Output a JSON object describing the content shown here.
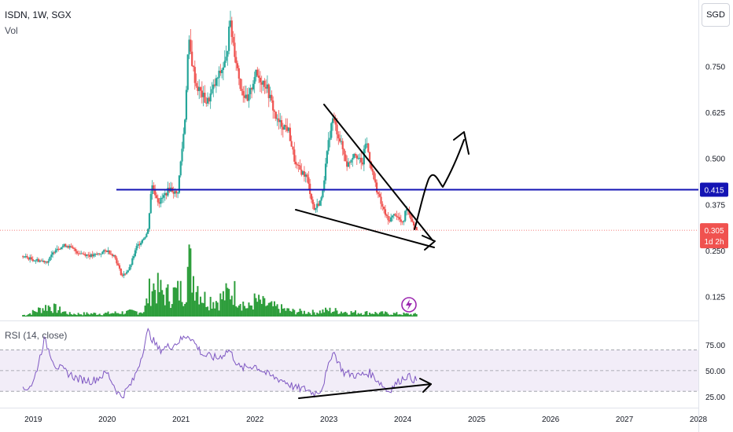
{
  "header": {
    "symbol_line": "ISDN, 1W, SGX",
    "volume_label": "Vol",
    "currency_button": "SGD"
  },
  "rsi": {
    "label": "RSI (14, close)",
    "ticks": [
      "75.00",
      "50.00",
      "25.00"
    ]
  },
  "price_axis": {
    "ticks": [
      "0.750",
      "0.625",
      "0.500",
      "0.375",
      "0.250",
      "0.125"
    ]
  },
  "markers": {
    "level_price": "0.415",
    "last_price": "0.305",
    "countdown": "1d 2h"
  },
  "colors": {
    "up": "#26a69a",
    "down": "#ef5350",
    "volume": "#2e9e3c",
    "level_line": "#1414b4",
    "last_price": "#f0524f",
    "rsi_line": "#7e57c2",
    "rsi_band": "#ede7f6"
  },
  "chart_data": {
    "type": "candlestick",
    "x_ticks": [
      "2019",
      "2020",
      "2021",
      "2022",
      "2023",
      "2024",
      "2025",
      "2026",
      "2027",
      "2028"
    ],
    "ylim": [
      0.06,
      0.93
    ],
    "price_path": [
      [
        2018.85,
        0.235
      ],
      [
        2019.0,
        0.225
      ],
      [
        2019.2,
        0.22
      ],
      [
        2019.3,
        0.255
      ],
      [
        2019.45,
        0.265
      ],
      [
        2019.6,
        0.245
      ],
      [
        2019.8,
        0.235
      ],
      [
        2020.0,
        0.25
      ],
      [
        2020.1,
        0.235
      ],
      [
        2020.2,
        0.18
      ],
      [
        2020.3,
        0.2
      ],
      [
        2020.4,
        0.26
      ],
      [
        2020.55,
        0.3
      ],
      [
        2020.6,
        0.43
      ],
      [
        2020.7,
        0.38
      ],
      [
        2020.85,
        0.42
      ],
      [
        2020.95,
        0.4
      ],
      [
        2021.05,
        0.6
      ],
      [
        2021.1,
        0.82
      ],
      [
        2021.2,
        0.7
      ],
      [
        2021.35,
        0.65
      ],
      [
        2021.5,
        0.72
      ],
      [
        2021.62,
        0.77
      ],
      [
        2021.65,
        0.88
      ],
      [
        2021.8,
        0.7
      ],
      [
        2021.9,
        0.65
      ],
      [
        2022.0,
        0.73
      ],
      [
        2022.15,
        0.7
      ],
      [
        2022.3,
        0.6
      ],
      [
        2022.45,
        0.58
      ],
      [
        2022.55,
        0.48
      ],
      [
        2022.7,
        0.45
      ],
      [
        2022.8,
        0.36
      ],
      [
        2022.9,
        0.39
      ],
      [
        2023.0,
        0.55
      ],
      [
        2023.05,
        0.61
      ],
      [
        2023.15,
        0.55
      ],
      [
        2023.25,
        0.48
      ],
      [
        2023.35,
        0.52
      ],
      [
        2023.45,
        0.48
      ],
      [
        2023.5,
        0.55
      ],
      [
        2023.6,
        0.45
      ],
      [
        2023.7,
        0.38
      ],
      [
        2023.8,
        0.33
      ],
      [
        2023.9,
        0.35
      ],
      [
        2024.0,
        0.32
      ],
      [
        2024.05,
        0.37
      ],
      [
        2024.15,
        0.32
      ],
      [
        2024.2,
        0.305
      ]
    ],
    "volume_path": [
      [
        2018.9,
        0.03
      ],
      [
        2019.2,
        0.2
      ],
      [
        2019.5,
        0.05
      ],
      [
        2020.0,
        0.06
      ],
      [
        2020.5,
        0.1
      ],
      [
        2020.6,
        0.6
      ],
      [
        2020.8,
        0.4
      ],
      [
        2021.05,
        0.5
      ],
      [
        2021.1,
        1.0
      ],
      [
        2021.3,
        0.35
      ],
      [
        2021.5,
        0.3
      ],
      [
        2021.7,
        0.5
      ],
      [
        2021.9,
        0.15
      ],
      [
        2022.0,
        0.3
      ],
      [
        2022.2,
        0.2
      ],
      [
        2022.5,
        0.1
      ],
      [
        2022.8,
        0.08
      ],
      [
        2023.0,
        0.12
      ],
      [
        2023.3,
        0.08
      ],
      [
        2023.6,
        0.07
      ],
      [
        2024.0,
        0.05
      ],
      [
        2024.2,
        0.04
      ]
    ],
    "rsi_path": [
      [
        2018.85,
        30
      ],
      [
        2019.0,
        38
      ],
      [
        2019.15,
        80
      ],
      [
        2019.3,
        55
      ],
      [
        2019.6,
        42
      ],
      [
        2019.8,
        40
      ],
      [
        2020.0,
        48
      ],
      [
        2020.15,
        28
      ],
      [
        2020.2,
        25
      ],
      [
        2020.35,
        40
      ],
      [
        2020.45,
        60
      ],
      [
        2020.55,
        88
      ],
      [
        2020.7,
        70
      ],
      [
        2020.9,
        75
      ],
      [
        2021.1,
        85
      ],
      [
        2021.3,
        65
      ],
      [
        2021.5,
        62
      ],
      [
        2021.65,
        70
      ],
      [
        2021.8,
        52
      ],
      [
        2022.0,
        55
      ],
      [
        2022.2,
        45
      ],
      [
        2022.4,
        40
      ],
      [
        2022.55,
        33
      ],
      [
        2022.7,
        32
      ],
      [
        2022.8,
        28
      ],
      [
        2022.9,
        32
      ],
      [
        2023.0,
        55
      ],
      [
        2023.05,
        70
      ],
      [
        2023.2,
        48
      ],
      [
        2023.4,
        45
      ],
      [
        2023.55,
        48
      ],
      [
        2023.7,
        38
      ],
      [
        2023.8,
        30
      ],
      [
        2023.95,
        40
      ],
      [
        2024.05,
        45
      ],
      [
        2024.2,
        40
      ]
    ]
  }
}
